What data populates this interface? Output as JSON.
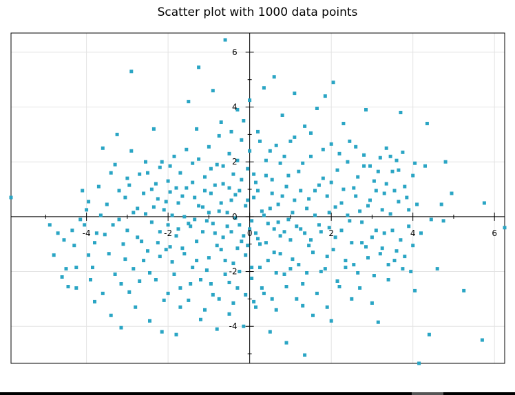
{
  "chart_data": {
    "type": "scatter",
    "title": "Scatter plot with 1000 data points",
    "xlabel": "",
    "ylabel": "",
    "xlim": [
      -5.85,
      6.25
    ],
    "ylim": [
      -5.35,
      6.7
    ],
    "xticks": [
      -4,
      -2,
      0,
      2,
      4,
      6
    ],
    "yticks": [
      -4,
      -2,
      0,
      2,
      4,
      6
    ],
    "x_tick_labels": [
      "-4",
      "-2",
      "0",
      "2",
      "4",
      "6"
    ],
    "y_tick_labels": [
      "-4",
      "-2",
      "0",
      "2",
      "4",
      "6"
    ],
    "grid": true,
    "axes_through_origin": true,
    "marker": "square",
    "marker_color": "#2aa5c4",
    "points_count": 1000,
    "points": [
      [
        -5.85,
        0.7
      ],
      [
        -4.7,
        -0.6
      ],
      [
        -4.6,
        -2.2
      ],
      [
        -4.5,
        -1.9
      ],
      [
        -4.45,
        -2.55
      ],
      [
        -4.35,
        -0.5
      ],
      [
        -4.25,
        -1.85
      ],
      [
        -4.25,
        -2.6
      ],
      [
        -4.15,
        -0.1
      ],
      [
        -4.05,
        -0.3
      ],
      [
        -4.0,
        0.25
      ],
      [
        -3.95,
        0.55
      ],
      [
        -3.95,
        -1.4
      ],
      [
        -3.85,
        -1.85
      ],
      [
        -3.8,
        -3.1
      ],
      [
        -3.75,
        -0.6
      ],
      [
        -3.7,
        1.1
      ],
      [
        -3.6,
        2.5
      ],
      [
        -3.6,
        -2.8
      ],
      [
        -3.55,
        -0.65
      ],
      [
        -3.5,
        0.45
      ],
      [
        -3.4,
        1.6
      ],
      [
        -3.35,
        -0.3
      ],
      [
        -3.3,
        1.9
      ],
      [
        -3.3,
        -2.1
      ],
      [
        -3.25,
        3.0
      ],
      [
        -3.2,
        -0.1
      ],
      [
        -3.15,
        -4.05
      ],
      [
        -3.1,
        -1.0
      ],
      [
        -3.05,
        0.7
      ],
      [
        -3.0,
        1.4
      ],
      [
        -3.0,
        -0.5
      ],
      [
        -2.95,
        -2.75
      ],
      [
        -2.9,
        5.3
      ],
      [
        -2.9,
        2.4
      ],
      [
        -2.85,
        -1.9
      ],
      [
        -2.8,
        -3.3
      ],
      [
        -2.75,
        0.3
      ],
      [
        -2.7,
        1.55
      ],
      [
        -2.65,
        -0.9
      ],
      [
        -2.6,
        -1.6
      ],
      [
        -2.55,
        2.0
      ],
      [
        -2.55,
        0.1
      ],
      [
        -2.45,
        -3.8
      ],
      [
        -2.4,
        1.0
      ],
      [
        -2.4,
        -0.2
      ],
      [
        -2.35,
        3.2
      ],
      [
        -2.3,
        -2.3
      ],
      [
        -2.25,
        0.65
      ],
      [
        -2.2,
        1.8
      ],
      [
        -2.2,
        -0.55
      ],
      [
        -2.15,
        -4.2
      ],
      [
        -2.1,
        0.25
      ],
      [
        -2.05,
        -1.2
      ],
      [
        -2.0,
        1.3
      ],
      [
        -2.0,
        -2.8
      ],
      [
        -1.95,
        0.9
      ],
      [
        -1.9,
        -1.65
      ],
      [
        -1.85,
        2.2
      ],
      [
        -1.8,
        -4.3
      ],
      [
        -1.8,
        -0.7
      ],
      [
        -1.75,
        0.5
      ],
      [
        -1.7,
        1.6
      ],
      [
        -1.7,
        -2.6
      ],
      [
        -1.65,
        -1.15
      ],
      [
        -1.6,
        0.0
      ],
      [
        -1.55,
        1.05
      ],
      [
        -1.5,
        4.2
      ],
      [
        -1.5,
        -3.05
      ],
      [
        -1.45,
        -0.35
      ],
      [
        -1.4,
        1.95
      ],
      [
        -1.4,
        -1.85
      ],
      [
        -1.35,
        0.7
      ],
      [
        -1.3,
        3.2
      ],
      [
        -1.3,
        -0.9
      ],
      [
        -1.25,
        5.45
      ],
      [
        -1.2,
        -2.3
      ],
      [
        -1.15,
        0.35
      ],
      [
        -1.1,
        1.45
      ],
      [
        -1.1,
        -3.4
      ],
      [
        -1.05,
        -0.15
      ],
      [
        -1.0,
        2.55
      ],
      [
        -1.0,
        -1.5
      ],
      [
        -0.95,
        0.85
      ],
      [
        -0.9,
        4.6
      ],
      [
        -0.9,
        -2.85
      ],
      [
        -0.85,
        -0.6
      ],
      [
        -0.8,
        1.9
      ],
      [
        -0.8,
        -4.1
      ],
      [
        -0.75,
        0.2
      ],
      [
        -0.7,
        3.45
      ],
      [
        -0.7,
        -1.2
      ],
      [
        -0.65,
        1.2
      ],
      [
        -0.6,
        -2.1
      ],
      [
        -0.6,
        6.45
      ],
      [
        -0.55,
        -0.35
      ],
      [
        -0.5,
        2.3
      ],
      [
        -0.5,
        -3.55
      ],
      [
        -0.45,
        0.6
      ],
      [
        -0.4,
        1.55
      ],
      [
        -0.4,
        -1.7
      ],
      [
        -0.35,
        -0.05
      ],
      [
        -0.3,
        3.9
      ],
      [
        -0.3,
        -2.6
      ],
      [
        -0.25,
        0.95
      ],
      [
        -0.2,
        -0.9
      ],
      [
        -0.2,
        2.8
      ],
      [
        -0.15,
        -4.0
      ],
      [
        -0.1,
        0.4
      ],
      [
        -0.1,
        -1.4
      ],
      [
        -0.05,
        1.75
      ],
      [
        0.0,
        -0.45
      ],
      [
        0.0,
        4.25
      ],
      [
        0.05,
        -2.25
      ],
      [
        0.1,
        0.7
      ],
      [
        0.1,
        -3.1
      ],
      [
        0.15,
        1.25
      ],
      [
        0.2,
        -0.8
      ],
      [
        0.2,
        3.1
      ],
      [
        0.25,
        -1.85
      ],
      [
        0.3,
        0.2
      ],
      [
        0.35,
        4.7
      ],
      [
        0.35,
        -2.8
      ],
      [
        0.4,
        1.5
      ],
      [
        0.45,
        -0.25
      ],
      [
        0.5,
        2.4
      ],
      [
        0.5,
        -4.2
      ],
      [
        0.55,
        0.85
      ],
      [
        0.6,
        -1.3
      ],
      [
        0.6,
        5.1
      ],
      [
        0.65,
        -3.4
      ],
      [
        0.7,
        0.45
      ],
      [
        0.75,
        1.95
      ],
      [
        0.75,
        -0.7
      ],
      [
        0.8,
        3.7
      ],
      [
        0.85,
        -2.1
      ],
      [
        0.9,
        1.1
      ],
      [
        0.9,
        -4.6
      ],
      [
        0.95,
        -0.1
      ],
      [
        1.0,
        2.75
      ],
      [
        1.05,
        -1.55
      ],
      [
        1.1,
        4.5
      ],
      [
        1.1,
        0.6
      ],
      [
        1.15,
        -3.0
      ],
      [
        1.2,
        1.65
      ],
      [
        1.25,
        -0.45
      ],
      [
        1.3,
        -2.45
      ],
      [
        1.35,
        3.3
      ],
      [
        1.35,
        -5.05
      ],
      [
        1.4,
        0.3
      ],
      [
        1.45,
        -1.05
      ],
      [
        1.5,
        2.2
      ],
      [
        1.55,
        -3.6
      ],
      [
        1.6,
        0.95
      ],
      [
        1.65,
        3.95
      ],
      [
        1.7,
        -0.3
      ],
      [
        1.75,
        -2.0
      ],
      [
        1.8,
        1.4
      ],
      [
        1.85,
        4.4
      ],
      [
        1.9,
        -1.45
      ],
      [
        1.95,
        0.15
      ],
      [
        2.0,
        2.65
      ],
      [
        2.0,
        -3.8
      ],
      [
        2.05,
        4.9
      ],
      [
        2.1,
        -0.75
      ],
      [
        2.15,
        1.7
      ],
      [
        2.2,
        -2.55
      ],
      [
        2.25,
        0.5
      ],
      [
        2.3,
        3.4
      ],
      [
        2.35,
        -1.6
      ],
      [
        2.4,
        2.0
      ],
      [
        2.45,
        -0.15
      ],
      [
        2.5,
        -3.0
      ],
      [
        2.55,
        1.05
      ],
      [
        2.6,
        2.55
      ],
      [
        2.65,
        -2.05
      ],
      [
        2.7,
        0.2
      ],
      [
        2.75,
        -0.95
      ],
      [
        2.8,
        1.85
      ],
      [
        2.85,
        3.9
      ],
      [
        2.9,
        -1.5
      ],
      [
        2.95,
        0.6
      ],
      [
        3.0,
        -3.15
      ],
      [
        3.05,
        1.3
      ],
      [
        3.1,
        -0.5
      ],
      [
        3.15,
        -3.85
      ],
      [
        3.2,
        2.15
      ],
      [
        3.25,
        -1.15
      ],
      [
        3.3,
        0.85
      ],
      [
        3.35,
        2.5
      ],
      [
        3.4,
        -2.3
      ],
      [
        3.45,
        0.1
      ],
      [
        3.5,
        1.65
      ],
      [
        3.55,
        -1.6
      ],
      [
        3.6,
        2.05
      ],
      [
        3.65,
        0.55
      ],
      [
        3.7,
        3.8
      ],
      [
        3.75,
        -1.9
      ],
      [
        3.8,
        1.1
      ],
      [
        3.85,
        0.7
      ],
      [
        3.9,
        -0.35
      ],
      [
        3.95,
        -2.0
      ],
      [
        4.0,
        1.5
      ],
      [
        4.05,
        -2.7
      ],
      [
        4.1,
        0.45
      ],
      [
        4.15,
        -5.35
      ],
      [
        4.2,
        -0.6
      ],
      [
        4.3,
        1.85
      ],
      [
        4.35,
        3.4
      ],
      [
        4.4,
        -4.3
      ],
      [
        4.45,
        -0.1
      ],
      [
        4.6,
        -1.9
      ],
      [
        4.7,
        0.45
      ],
      [
        4.75,
        -0.15
      ],
      [
        4.8,
        2.0
      ],
      [
        4.95,
        0.85
      ],
      [
        5.25,
        -2.7
      ],
      [
        5.7,
        -4.5
      ],
      [
        5.75,
        0.5
      ],
      [
        6.25,
        -0.4
      ],
      [
        -4.9,
        -0.3
      ],
      [
        -4.8,
        -1.4
      ],
      [
        -4.55,
        -0.85
      ],
      [
        -4.3,
        -1.05
      ],
      [
        -4.1,
        0.95
      ],
      [
        -3.9,
        -2.3
      ],
      [
        -3.8,
        -0.95
      ],
      [
        -3.65,
        0.05
      ],
      [
        -3.45,
        -1.35
      ],
      [
        -3.4,
        -3.6
      ],
      [
        -3.2,
        0.95
      ],
      [
        -3.15,
        -2.45
      ],
      [
        -3.05,
        -1.55
      ],
      [
        -2.95,
        1.15
      ],
      [
        -2.85,
        0.15
      ],
      [
        -2.75,
        -0.75
      ],
      [
        -2.7,
        -2.35
      ],
      [
        -2.6,
        0.85
      ],
      [
        -2.5,
        -1.25
      ],
      [
        -2.5,
        1.6
      ],
      [
        -2.45,
        -2.05
      ],
      [
        -2.35,
        0.35
      ],
      [
        -2.3,
        1.2
      ],
      [
        -2.25,
        -0.95
      ],
      [
        -2.2,
        -1.45
      ],
      [
        -2.15,
        2.0
      ],
      [
        -2.1,
        -3.05
      ],
      [
        -2.05,
        0.55
      ],
      [
        -2.0,
        -0.3
      ],
      [
        -1.95,
        -1.1
      ],
      [
        -1.95,
        1.85
      ],
      [
        -1.9,
        0.05
      ],
      [
        -1.85,
        -2.1
      ],
      [
        -1.8,
        1.05
      ],
      [
        -1.75,
        -0.45
      ],
      [
        -1.7,
        -3.3
      ],
      [
        -1.65,
        0.75
      ],
      [
        -1.6,
        -1.35
      ],
      [
        -1.55,
        2.45
      ],
      [
        -1.5,
        -0.25
      ],
      [
        -1.45,
        -2.45
      ],
      [
        -1.4,
        1.25
      ],
      [
        -1.35,
        -0.1
      ],
      [
        -1.3,
        -1.6
      ],
      [
        -1.25,
        2.1
      ],
      [
        -1.25,
        0.4
      ],
      [
        -1.2,
        -3.75
      ],
      [
        -1.15,
        -0.55
      ],
      [
        -1.1,
        0.95
      ],
      [
        -1.05,
        -1.95
      ],
      [
        -1.0,
        0.15
      ],
      [
        -0.95,
        1.75
      ],
      [
        -0.95,
        -2.45
      ],
      [
        -0.9,
        -0.25
      ],
      [
        -0.85,
        1.15
      ],
      [
        -0.8,
        -1.05
      ],
      [
        -0.75,
        2.95
      ],
      [
        -0.75,
        -3.0
      ],
      [
        -0.7,
        0.5
      ],
      [
        -0.65,
        -0.75
      ],
      [
        -0.65,
        1.85
      ],
      [
        -0.6,
        -1.6
      ],
      [
        -0.55,
        0.15
      ],
      [
        -0.5,
        -2.4
      ],
      [
        -0.5,
        1.05
      ],
      [
        -0.45,
        -0.55
      ],
      [
        -0.45,
        3.1
      ],
      [
        -0.4,
        -3.15
      ],
      [
        -0.35,
        0.8
      ],
      [
        -0.3,
        -1.15
      ],
      [
        -0.3,
        2.05
      ],
      [
        -0.25,
        -0.3
      ],
      [
        -0.25,
        -2.0
      ],
      [
        -0.2,
        1.35
      ],
      [
        -0.15,
        -0.7
      ],
      [
        -0.15,
        3.5
      ],
      [
        -0.1,
        -2.85
      ],
      [
        -0.05,
        0.6
      ],
      [
        -0.05,
        -1.05
      ],
      [
        0.0,
        2.4
      ],
      [
        0.05,
        -0.15
      ],
      [
        0.05,
        -1.85
      ],
      [
        0.1,
        1.55
      ],
      [
        0.15,
        -3.3
      ],
      [
        0.15,
        -0.6
      ],
      [
        0.2,
        0.95
      ],
      [
        0.25,
        2.75
      ],
      [
        0.25,
        -1.0
      ],
      [
        0.3,
        -2.6
      ],
      [
        0.35,
        0.05
      ],
      [
        0.4,
        -0.95
      ],
      [
        0.4,
        2.05
      ],
      [
        0.45,
        -1.6
      ],
      [
        0.5,
        0.3
      ],
      [
        0.55,
        -3.0
      ],
      [
        0.55,
        1.35
      ],
      [
        0.6,
        -0.45
      ],
      [
        0.65,
        2.6
      ],
      [
        0.65,
        -2.05
      ],
      [
        0.7,
        -0.2
      ],
      [
        0.75,
        -1.35
      ],
      [
        0.8,
        0.75
      ],
      [
        0.85,
        -0.55
      ],
      [
        0.85,
        2.2
      ],
      [
        0.9,
        -2.55
      ],
      [
        0.95,
        1.5
      ],
      [
        1.0,
        -0.85
      ],
      [
        1.0,
        -1.9
      ],
      [
        1.05,
        0.15
      ],
      [
        1.1,
        2.9
      ],
      [
        1.15,
        -0.35
      ],
      [
        1.2,
        -1.75
      ],
      [
        1.25,
        0.95
      ],
      [
        1.3,
        -3.25
      ],
      [
        1.3,
        1.95
      ],
      [
        1.35,
        -0.6
      ],
      [
        1.4,
        -2.05
      ],
      [
        1.45,
        0.65
      ],
      [
        1.5,
        -0.85
      ],
      [
        1.5,
        3.05
      ],
      [
        1.55,
        -1.3
      ],
      [
        1.6,
        0.05
      ],
      [
        1.65,
        -2.8
      ],
      [
        1.7,
        1.15
      ],
      [
        1.75,
        -0.55
      ],
      [
        1.8,
        2.45
      ],
      [
        1.85,
        -1.9
      ],
      [
        1.9,
        0.75
      ],
      [
        1.9,
        -3.3
      ],
      [
        1.95,
        -0.4
      ],
      [
        2.0,
        1.25
      ],
      [
        2.05,
        -1.2
      ],
      [
        2.1,
        0.35
      ],
      [
        2.15,
        -2.35
      ],
      [
        2.2,
        2.3
      ],
      [
        2.25,
        -0.5
      ],
      [
        2.3,
        1.0
      ],
      [
        2.35,
        -1.85
      ],
      [
        2.4,
        0.05
      ],
      [
        2.45,
        2.75
      ],
      [
        2.5,
        -0.95
      ],
      [
        2.55,
        -1.75
      ],
      [
        2.6,
        0.75
      ],
      [
        2.65,
        1.45
      ],
      [
        2.7,
        -2.6
      ],
      [
        2.75,
        -0.2
      ],
      [
        2.8,
        2.25
      ],
      [
        2.85,
        -1.1
      ],
      [
        2.9,
        0.4
      ],
      [
        2.95,
        1.85
      ],
      [
        3.0,
        -0.75
      ],
      [
        3.05,
        -2.15
      ],
      [
        3.1,
        0.95
      ],
      [
        3.15,
        1.65
      ],
      [
        3.2,
        -1.35
      ],
      [
        3.25,
        0.25
      ],
      [
        3.3,
        -0.6
      ],
      [
        3.35,
        1.2
      ],
      [
        3.4,
        -1.75
      ],
      [
        3.45,
        2.2
      ],
      [
        3.5,
        -0.5
      ],
      [
        3.55,
        0.95
      ],
      [
        3.6,
        -1.25
      ],
      [
        3.65,
        1.7
      ],
      [
        3.7,
        -0.85
      ],
      [
        3.75,
        2.35
      ],
      [
        3.8,
        -1.45
      ],
      [
        3.9,
        0.25
      ],
      [
        4.0,
        -1.05
      ],
      [
        4.05,
        1.95
      ]
    ]
  }
}
